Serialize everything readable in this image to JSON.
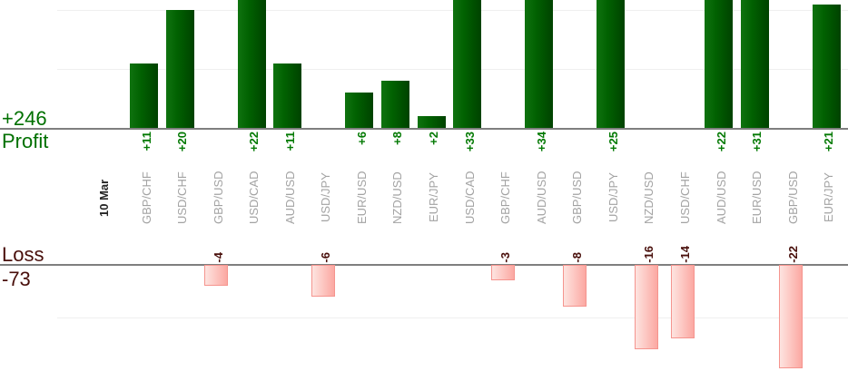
{
  "chart_data": {
    "type": "bar",
    "date_label": "10 Mar",
    "categories": [
      "GBP/CHF",
      "USD/CHF",
      "GBP/USD",
      "USD/CAD",
      "AUD/USD",
      "USD/JPY",
      "EUR/USD",
      "NZD/USD",
      "EUR/JPY",
      "USD/CAD",
      "GBP/CHF",
      "AUD/USD",
      "GBP/USD",
      "USD/JPY",
      "NZD/USD",
      "USD/CHF",
      "AUD/USD",
      "EUR/USD",
      "GBP/USD",
      "EUR/JPY"
    ],
    "values": [
      11,
      20,
      -4,
      22,
      11,
      -6,
      6,
      8,
      2,
      33,
      -3,
      34,
      -8,
      25,
      -16,
      -14,
      22,
      31,
      -22,
      21
    ],
    "value_labels": [
      "+11",
      "+20",
      "-4",
      "+22",
      "+11",
      "-6",
      "+6",
      "+8",
      "+2",
      "+33",
      "-3",
      "+34",
      "-8",
      "+25",
      "-16",
      "-14",
      "+22",
      "+31",
      "-22",
      "+21"
    ],
    "profit": {
      "axis_label": "Profit",
      "total_label": "+246",
      "total": 246,
      "gridline_values": [
        10,
        20
      ]
    },
    "loss": {
      "axis_label": "Loss",
      "total_label": "-73",
      "total": -73,
      "gridline_values": [
        -10
      ]
    },
    "ylim_profit_visible": [
      0,
      21.7
    ],
    "ylim_loss_visible": [
      -19.7,
      0
    ],
    "grid": "on",
    "legend": "none",
    "bars_clipped_at_top": [
      "USD/CAD +22",
      "USD/CAD +33",
      "AUD/USD +34",
      "USD/JPY +25",
      "AUD/USD +22",
      "EUR/USD +31"
    ],
    "bars_clipped_at_bottom": [
      "GBP/USD -22"
    ],
    "colors": {
      "profit_bar_gradient": [
        "#0f730f",
        "#016101",
        "#004200"
      ],
      "loss_bar_gradient": [
        "#fde4e0",
        "#fdc9c4",
        "#fba8a2"
      ],
      "loss_bar_border": "#f5948e",
      "profit_text": "#007000",
      "profit_value_text": "#047a04",
      "loss_text": "#490f0b",
      "category_text": "#a3a3a3",
      "date_text": "#262626",
      "axis_line": "#7f7f7f",
      "gridline": "#efefef"
    }
  }
}
